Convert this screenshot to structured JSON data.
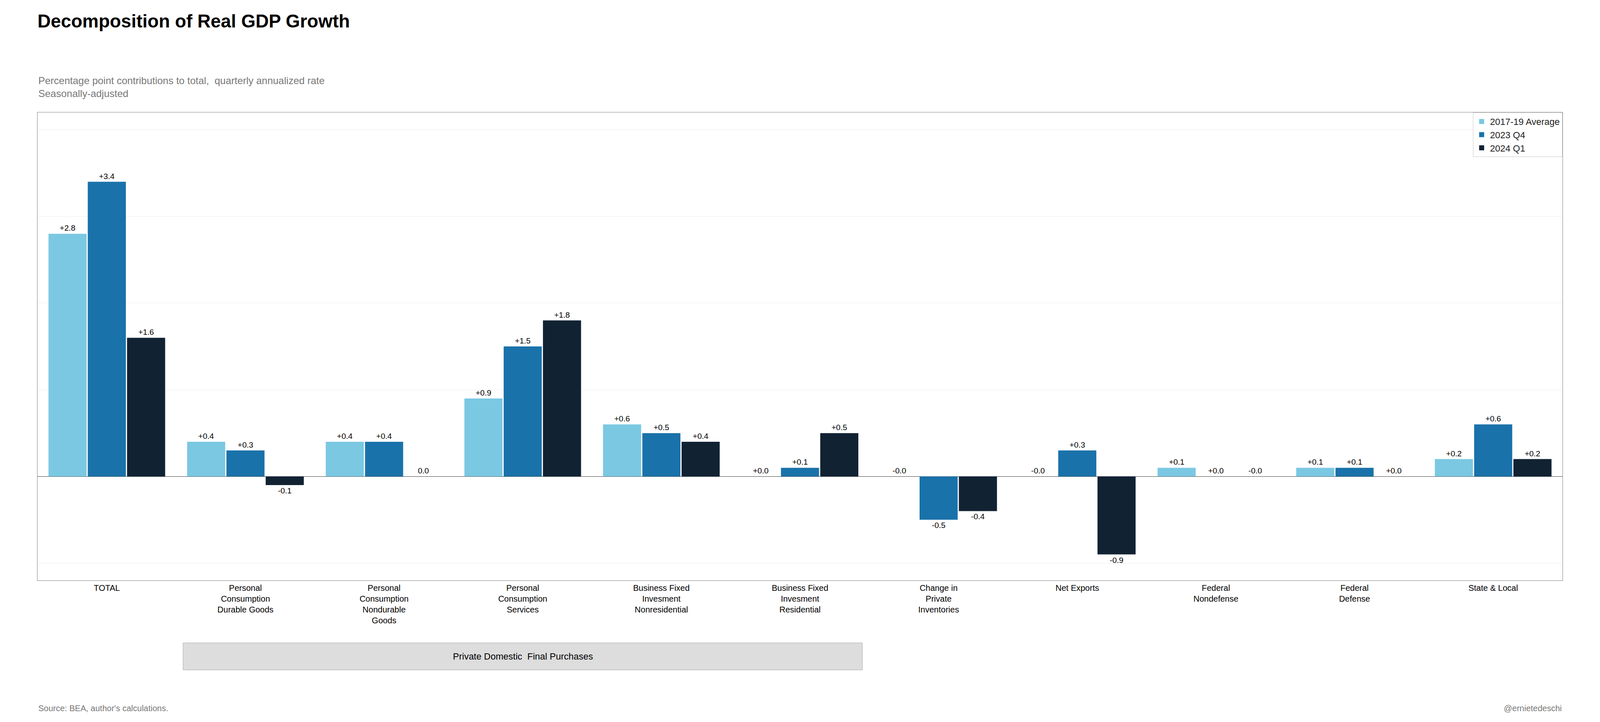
{
  "chart_data": {
    "type": "bar",
    "title": "Decomposition of Real GDP Growth",
    "subtitle": [
      "Percentage point contributions to total,  quarterly annualized rate",
      "Seasonally-adjusted"
    ],
    "categories": [
      "TOTAL",
      "Personal\nConsumption\nDurable Goods",
      "Personal\nConsumption\nNondurable\nGoods",
      "Personal\nConsumption\nServices",
      "Business Fixed\nInvesment\nNonresidential",
      "Business Fixed\nInvesment\nResidential",
      "Change in\nPrivate\nInventories",
      "Net Exports",
      "Federal\nNondefense",
      "Federal\nDefense",
      "State & Local"
    ],
    "series": [
      {
        "name": "2017-19 Average",
        "color": "#7BC8E2",
        "values": [
          2.8,
          0.4,
          0.4,
          0.9,
          0.6,
          0.0,
          0.0,
          0.0,
          0.1,
          0.1,
          0.2
        ],
        "value_labels": [
          "+2.8",
          "+0.4",
          "+0.4",
          "+0.9",
          "+0.6",
          "+0.0",
          "-0.0",
          "-0.0",
          "+0.1",
          "+0.1",
          "+0.2"
        ]
      },
      {
        "name": "2023 Q4",
        "color": "#1A72AA",
        "values": [
          3.4,
          0.3,
          0.4,
          1.5,
          0.5,
          0.1,
          -0.5,
          0.3,
          0.0,
          0.1,
          0.6
        ],
        "value_labels": [
          "+3.4",
          "+0.3",
          "+0.4",
          "+1.5",
          "+0.5",
          "+0.1",
          "-0.5",
          "+0.3",
          "+0.0",
          "+0.1",
          "+0.6"
        ]
      },
      {
        "name": "2024 Q1",
        "color": "#112233",
        "values": [
          1.6,
          -0.1,
          0.0,
          1.8,
          0.4,
          0.5,
          -0.4,
          -0.9,
          0.0,
          0.0,
          0.2
        ],
        "value_labels": [
          "+1.6",
          "-0.1",
          "0.0",
          "+1.8",
          "+0.4",
          "+0.5",
          "-0.4",
          "-0.9",
          "-0.0",
          "+0.0",
          "+0.2"
        ]
      }
    ],
    "ylim": [
      -1.2,
      4.2
    ],
    "yticks": [
      -1,
      0,
      1,
      2,
      3,
      4
    ],
    "grid": true,
    "legend": "upper right",
    "data_labels": true,
    "tick_labels": "x",
    "annotations": [
      {
        "text": "Private Domestic  Final Purchases",
        "span": [
          "Personal\nConsumption\nDurable Goods",
          "Business Fixed\nInvesment\nResidential"
        ]
      }
    ],
    "footer": [
      "Source: BEA, author's calculations.",
      "@ernietedeschi"
    ]
  }
}
